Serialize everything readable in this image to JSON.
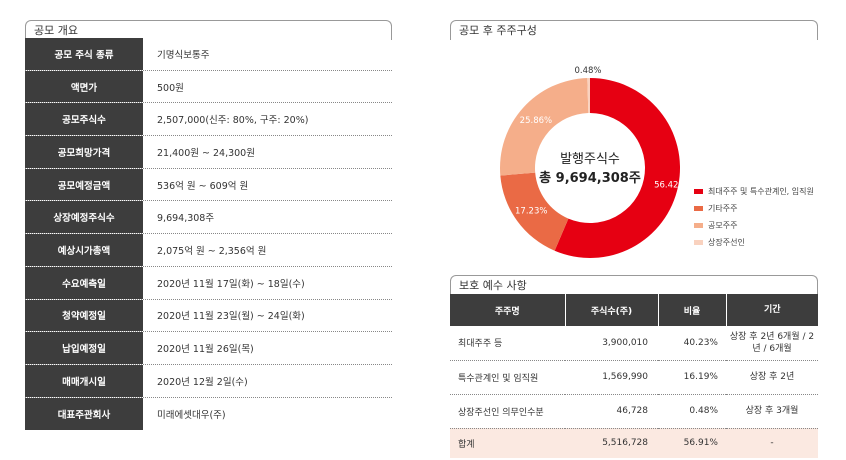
{
  "overview": {
    "title": "공모 개요",
    "rows": [
      {
        "label": "공모 주식 종류",
        "value": "기명식보통주"
      },
      {
        "label": "액면가",
        "value": "500원"
      },
      {
        "label": "공모주식수",
        "value": "2,507,000(신주: 80%, 구주: 20%)"
      },
      {
        "label": "공모희망가격",
        "value": "21,400원 ~ 24,300원"
      },
      {
        "label": "공모예정금액",
        "value": "536억 원 ~ 609억 원"
      },
      {
        "label": "상장예정주식수",
        "value": "9,694,308주"
      },
      {
        "label": "예상시가총액",
        "value": "2,075억 원 ~ 2,356억 원"
      },
      {
        "label": "수요예측일",
        "value": "2020년 11월 17일(화) ~ 18일(수)"
      },
      {
        "label": "청약예정일",
        "value": "2020년 11월 23일(월) ~ 24일(화)"
      },
      {
        "label": "납입예정일",
        "value": "2020년 11월 26일(목)"
      },
      {
        "label": "매매개시일",
        "value": "2020년 12월 2일(수)"
      },
      {
        "label": "대표주관회사",
        "value": "미래에셋대우(주)"
      }
    ]
  },
  "shareholding": {
    "title": "공모 후 주주구성",
    "center_line1": "발행주식수",
    "center_line2": "총 9,694,308주"
  },
  "chart_data": {
    "type": "pie",
    "title": "",
    "categories": [
      "최대주주 및 특수관계인, 임직원",
      "기타주주",
      "공모주주",
      "상장주선인"
    ],
    "values": [
      56.42,
      17.23,
      25.86,
      0.48
    ],
    "labels": [
      "56.42%",
      "17.23%",
      "25.86%",
      "0.48%"
    ],
    "colors": [
      "#e60012",
      "#ea6a45",
      "#f5ae8a",
      "#f9d2bf"
    ],
    "legend_position": "right"
  },
  "lockup": {
    "title": "보호 예수 사항",
    "headers": [
      "주주명",
      "주식수(주)",
      "비율",
      "기간"
    ],
    "rows": [
      {
        "name": "최대주주 등",
        "shares": "3,900,010",
        "ratio": "40.23%",
        "period": "상장 후 2년 6개월 / 2년 / 6개월"
      },
      {
        "name": "특수관계인 및 임직원",
        "shares": "1,569,990",
        "ratio": "16.19%",
        "period": "상장 후 2년"
      },
      {
        "name": "상장주선인 의무인수분",
        "shares": "46,728",
        "ratio": "0.48%",
        "period": "상장 후 3개월"
      }
    ],
    "total": {
      "name": "합계",
      "shares": "5,516,728",
      "ratio": "56.91%",
      "period": "-"
    }
  }
}
